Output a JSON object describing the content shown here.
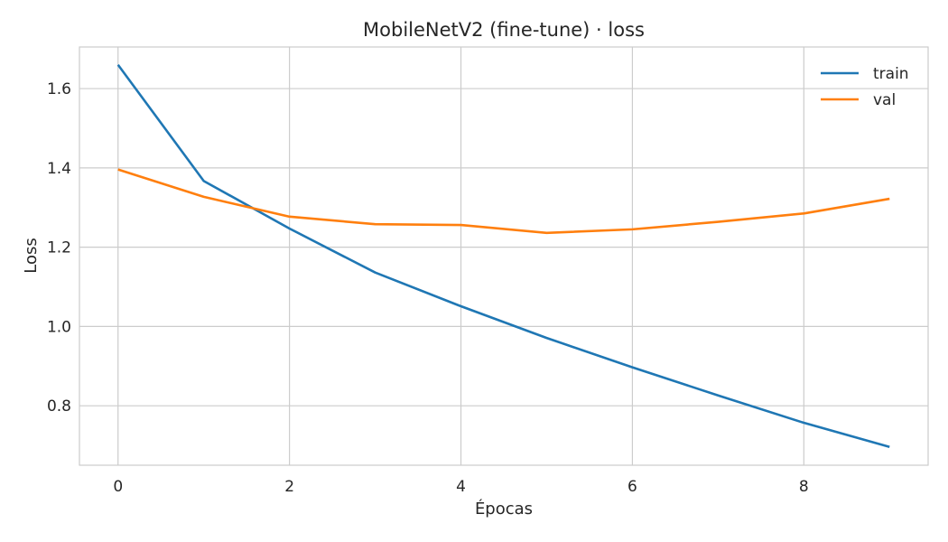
{
  "chart_data": {
    "type": "line",
    "title": "MobileNetV2 (fine-tune) · loss",
    "xlabel": "Épocas",
    "ylabel": "Loss",
    "x": [
      0,
      1,
      2,
      3,
      4,
      5,
      6,
      7,
      8,
      9
    ],
    "xlim": [
      -0.45,
      9.45
    ],
    "ylim": [
      0.65,
      1.705
    ],
    "xticks": [
      0,
      2,
      4,
      6,
      8
    ],
    "yticks": [
      0.8,
      1.0,
      1.2,
      1.4,
      1.6
    ],
    "xtick_labels": [
      "0",
      "2",
      "4",
      "6",
      "8"
    ],
    "ytick_labels": [
      "0.8",
      "1.0",
      "1.2",
      "1.4",
      "1.6"
    ],
    "grid": true,
    "legend_position": "top-right",
    "series": [
      {
        "name": "train",
        "color": "#1f77b4",
        "values": [
          1.66,
          1.367,
          1.247,
          1.136,
          1.051,
          0.971,
          0.897,
          0.826,
          0.757,
          0.696
        ]
      },
      {
        "name": "val",
        "color": "#ff7f0e",
        "values": [
          1.396,
          1.327,
          1.277,
          1.258,
          1.256,
          1.236,
          1.245,
          1.264,
          1.285,
          1.322
        ]
      }
    ]
  }
}
